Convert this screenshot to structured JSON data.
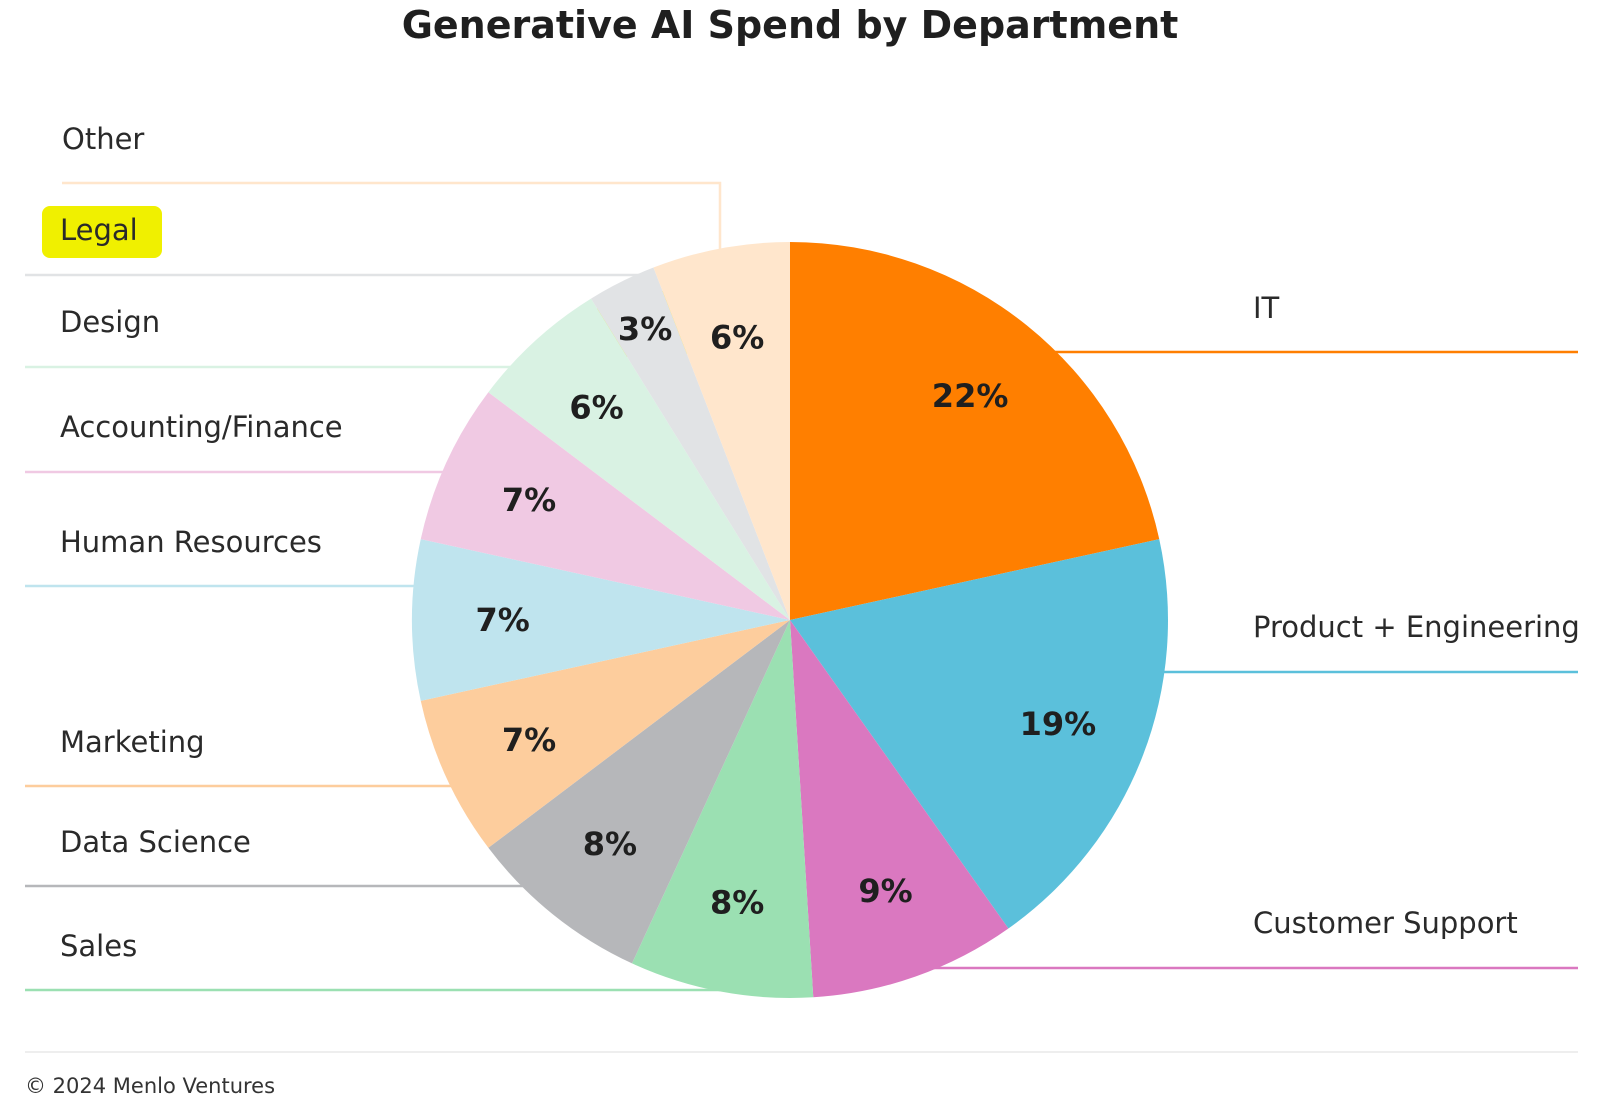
{
  "chart_data": {
    "type": "pie",
    "title": "Generative AI Spend by Department",
    "slices": [
      {
        "name": "IT",
        "value": 22,
        "label": "22%",
        "color": "#ff7f00"
      },
      {
        "name": "Product + Engineering",
        "value": 19,
        "label": "19%",
        "color": "#5bc0db"
      },
      {
        "name": "Customer Support",
        "value": 9,
        "label": "9%",
        "color": "#da78c0"
      },
      {
        "name": "Sales",
        "value": 8,
        "label": "8%",
        "color": "#9be0b2"
      },
      {
        "name": "Data Science",
        "value": 8,
        "label": "8%",
        "color": "#b6b7ba"
      },
      {
        "name": "Marketing",
        "value": 7,
        "label": "7%",
        "color": "#fdcd9d"
      },
      {
        "name": "Human Resources",
        "value": 7,
        "label": "7%",
        "color": "#bfe4ee"
      },
      {
        "name": "Accounting/Finance",
        "value": 7,
        "label": "7%",
        "color": "#f0c9e3"
      },
      {
        "name": "Design",
        "value": 6,
        "label": "6%",
        "color": "#d9f2e3"
      },
      {
        "name": "Legal",
        "value": 3,
        "label": "3%",
        "color": "#e1e3e5",
        "highlighted": true
      },
      {
        "name": "Other",
        "value": 6,
        "label": "6%",
        "color": "#ffe6cc"
      }
    ],
    "highlight_color": "#f0f000",
    "separator_color": "#eeeeee"
  },
  "footer": {
    "credit": "© 2024 Menlo Ventures"
  }
}
